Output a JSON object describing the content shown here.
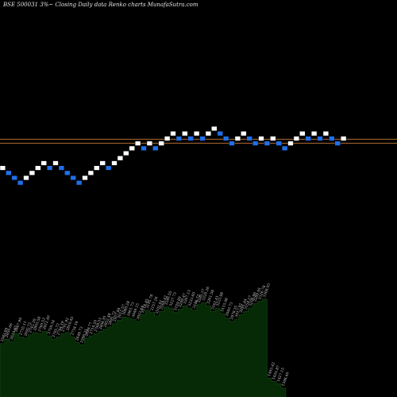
{
  "chart_title": "BSE 500031 3%~   Closing Daily data  Renko  charts MunafaSutra.com",
  "colors": {
    "background": "#000000",
    "up_brick": "#ffffff",
    "down_brick": "#1f6fe8",
    "brick_outline": "#000000",
    "reference_lines": "#c87a3a",
    "volume_fill": "#062906",
    "volume_stroke": "#1a4a1a",
    "volume_label": "#cfcfcf"
  },
  "chart_data": {
    "type": "renko",
    "bricks": [
      {
        "level": 6,
        "dir": "up"
      },
      {
        "level": 5,
        "dir": "down"
      },
      {
        "level": 4,
        "dir": "down"
      },
      {
        "level": 3,
        "dir": "down"
      },
      {
        "level": 4,
        "dir": "up"
      },
      {
        "level": 5,
        "dir": "up"
      },
      {
        "level": 6,
        "dir": "up"
      },
      {
        "level": 7,
        "dir": "up"
      },
      {
        "level": 6,
        "dir": "down"
      },
      {
        "level": 7,
        "dir": "up"
      },
      {
        "level": 6,
        "dir": "down"
      },
      {
        "level": 5,
        "dir": "down"
      },
      {
        "level": 4,
        "dir": "down"
      },
      {
        "level": 3,
        "dir": "down"
      },
      {
        "level": 4,
        "dir": "up"
      },
      {
        "level": 5,
        "dir": "up"
      },
      {
        "level": 6,
        "dir": "up"
      },
      {
        "level": 7,
        "dir": "up"
      },
      {
        "level": 6,
        "dir": "down"
      },
      {
        "level": 7,
        "dir": "up"
      },
      {
        "level": 8,
        "dir": "up"
      },
      {
        "level": 9,
        "dir": "up"
      },
      {
        "level": 10,
        "dir": "up"
      },
      {
        "level": 11,
        "dir": "up"
      },
      {
        "level": 10,
        "dir": "down"
      },
      {
        "level": 11,
        "dir": "up"
      },
      {
        "level": 10,
        "dir": "down"
      },
      {
        "level": 11,
        "dir": "up"
      },
      {
        "level": 12,
        "dir": "up"
      },
      {
        "level": 13,
        "dir": "up"
      },
      {
        "level": 12,
        "dir": "down"
      },
      {
        "level": 13,
        "dir": "up"
      },
      {
        "level": 12,
        "dir": "down"
      },
      {
        "level": 13,
        "dir": "up"
      },
      {
        "level": 12,
        "dir": "down"
      },
      {
        "level": 13,
        "dir": "up"
      },
      {
        "level": 14,
        "dir": "up"
      },
      {
        "level": 13,
        "dir": "down"
      },
      {
        "level": 12,
        "dir": "down"
      },
      {
        "level": 11,
        "dir": "down"
      },
      {
        "level": 12,
        "dir": "up"
      },
      {
        "level": 13,
        "dir": "up"
      },
      {
        "level": 12,
        "dir": "down"
      },
      {
        "level": 11,
        "dir": "down"
      },
      {
        "level": 12,
        "dir": "up"
      },
      {
        "level": 11,
        "dir": "down"
      },
      {
        "level": 12,
        "dir": "up"
      },
      {
        "level": 11,
        "dir": "down"
      },
      {
        "level": 10,
        "dir": "down"
      },
      {
        "level": 11,
        "dir": "up"
      },
      {
        "level": 12,
        "dir": "up"
      },
      {
        "level": 13,
        "dir": "up"
      },
      {
        "level": 12,
        "dir": "down"
      },
      {
        "level": 13,
        "dir": "up"
      },
      {
        "level": 12,
        "dir": "down"
      },
      {
        "level": 13,
        "dir": "up"
      },
      {
        "level": 12,
        "dir": "down"
      },
      {
        "level": 11,
        "dir": "down"
      },
      {
        "level": 12,
        "dir": "up"
      }
    ],
    "reference_levels": [
      11.4,
      10.6
    ],
    "volume": {
      "values": [
        48,
        52,
        50,
        57,
        54,
        53,
        56,
        58,
        57,
        59,
        55,
        52,
        54,
        57,
        58,
        54,
        49,
        47,
        53,
        55,
        57,
        59,
        61,
        63,
        66,
        69,
        72,
        71,
        70,
        68,
        74,
        78,
        76,
        73,
        77,
        81,
        80,
        76,
        79,
        82,
        80,
        78,
        83,
        85,
        82,
        77,
        80,
        75,
        71,
        68,
        70,
        74,
        77,
        80,
        84,
        86,
        88,
        17,
        14,
        12,
        8
      ],
      "labels": [
        "2583.89",
        "2650.66",
        "2614.67",
        "2647.99",
        "2735.11",
        "2692.72",
        "2742.39",
        "2803.58",
        "2760.53",
        "2812.40",
        "2759.34",
        "2705.72",
        "2744.19",
        "2791.92",
        "2810.45",
        "2734.16",
        "2648.73",
        "2596.31",
        "2689.77",
        "2714.20",
        "2768.53",
        "2806.91",
        "2852.48",
        "2895.72",
        "2957.84",
        "3012.57",
        "3080.28",
        "3061.73",
        "3049.15",
        "3012.64",
        "3118.45",
        "3195.78",
        "3157.26",
        "3103.91",
        "3168.42",
        "3246.55",
        "3227.73",
        "3150.89",
        "3209.47",
        "3267.13",
        "3233.60",
        "3186.72",
        "3285.37",
        "3320.26",
        "3261.58",
        "3162.41",
        "3223.88",
        "3115.06",
        "3040.73",
        "2978.35",
        "3017.92",
        "3091.44",
        "3154.27",
        "3208.66",
        "3289.05",
        "3326.78",
        "3368.93",
        "1493.42",
        "1455.87",
        "1427.15",
        "1398.40"
      ]
    }
  }
}
